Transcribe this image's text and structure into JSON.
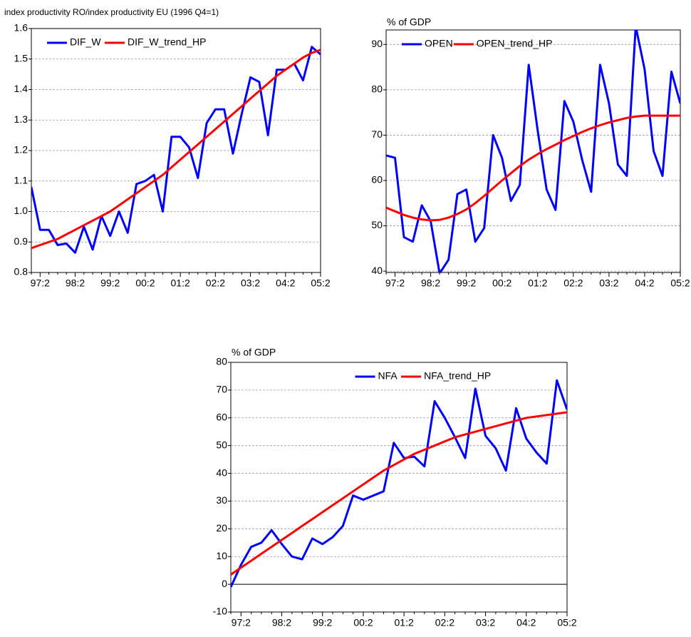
{
  "chart_data": [
    {
      "type": "line",
      "title": "index productivity RO/index productivity EU (1996 Q4=1)",
      "categories": [
        null,
        "97:2",
        null,
        null,
        null,
        "98:2",
        null,
        null,
        null,
        "99:2",
        null,
        null,
        null,
        "00:2",
        null,
        null,
        null,
        "01:2",
        null,
        null,
        null,
        "02:2",
        null,
        null,
        null,
        "03:2",
        null,
        null,
        null,
        "04:2",
        null,
        null,
        null,
        "05:2"
      ],
      "series": [
        {
          "name": "DIF_W",
          "color": "#0000ff",
          "values": [
            1.08,
            0.94,
            0.94,
            0.89,
            0.895,
            0.865,
            0.95,
            0.875,
            0.985,
            0.92,
            1.0,
            0.93,
            1.09,
            1.1,
            1.12,
            1.0,
            1.245,
            1.245,
            1.21,
            1.11,
            1.29,
            1.335,
            1.335,
            1.19,
            1.32,
            1.44,
            1.425,
            1.25,
            1.465,
            1.465,
            1.485,
            1.43,
            1.54,
            1.515
          ]
        },
        {
          "name": "DIF_W_trend_HP",
          "color": "#ff0000",
          "values": [
            0.88,
            0.89,
            0.9,
            0.91,
            0.925,
            0.94,
            0.955,
            0.97,
            0.985,
            1.0,
            1.02,
            1.04,
            1.06,
            1.08,
            1.1,
            1.12,
            1.145,
            1.17,
            1.195,
            1.22,
            1.245,
            1.27,
            1.295,
            1.32,
            1.345,
            1.37,
            1.395,
            1.42,
            1.445,
            1.465,
            1.485,
            1.505,
            1.52,
            1.53
          ]
        }
      ],
      "ylim": [
        0.8,
        1.6
      ],
      "yticks": [
        0.8,
        0.9,
        {
          "value": 1,
          "label": "1.0"
        },
        1.1,
        1.2,
        1.3,
        1.4,
        1.5,
        1.6
      ],
      "grid": true,
      "legend": "upper left"
    },
    {
      "type": "line",
      "ylabel": "% of GDP",
      "categories": [
        null,
        "97:2",
        null,
        null,
        null,
        "98:2",
        null,
        null,
        null,
        "99:2",
        null,
        null,
        null,
        "00:2",
        null,
        null,
        null,
        "01:2",
        null,
        null,
        null,
        "02:2",
        null,
        null,
        null,
        "03:2",
        null,
        null,
        null,
        "04:2",
        null,
        null,
        null,
        "05:2"
      ],
      "series": [
        {
          "name": "OPEN",
          "color": "#0000ff",
          "values": [
            65.5,
            65,
            47.5,
            46.5,
            54.5,
            51,
            39.5,
            42.5,
            57,
            58,
            46.5,
            49.5,
            70,
            65,
            55.5,
            59,
            85.5,
            71,
            58,
            53.5,
            77.5,
            73,
            64.5,
            57.5,
            85.5,
            77,
            63.5,
            61,
            94,
            84.5,
            66.5,
            61,
            84,
            77
          ]
        },
        {
          "name": "OPEN_trend_HP",
          "color": "#ff0000",
          "values": [
            54,
            53.2,
            52.4,
            51.8,
            51.4,
            51.2,
            51.3,
            51.8,
            52.6,
            53.6,
            55,
            56.6,
            58.3,
            60,
            61.6,
            63.2,
            64.6,
            65.8,
            66.9,
            67.9,
            68.9,
            69.8,
            70.7,
            71.5,
            72.2,
            72.8,
            73.3,
            73.8,
            74.1,
            74.3,
            74.3,
            74.3,
            74.3,
            74.3
          ]
        }
      ],
      "ylim": [
        39.7,
        93.2
      ],
      "yticks": [
        40,
        50,
        60,
        70,
        80,
        90
      ],
      "grid": true,
      "legend": "upper left"
    },
    {
      "type": "line",
      "ylabel": "% of GDP",
      "categories": [
        null,
        "97:2",
        null,
        null,
        null,
        "98:2",
        null,
        null,
        null,
        "99:2",
        null,
        null,
        null,
        "00:2",
        null,
        null,
        null,
        "01:2",
        null,
        null,
        null,
        "02:2",
        null,
        null,
        null,
        "03:2",
        null,
        null,
        null,
        "04:2",
        null,
        null,
        null,
        "05:2"
      ],
      "series": [
        {
          "name": "NFA",
          "color": "#0000ff",
          "values": [
            -1,
            7,
            13.5,
            15,
            19.5,
            14.5,
            10,
            9,
            16.5,
            14.5,
            17,
            21,
            32,
            30.5,
            32,
            33.5,
            51,
            45.5,
            46,
            42.5,
            66,
            60,
            53,
            45.5,
            70.5,
            53.5,
            49,
            41,
            63.5,
            52.5,
            47.5,
            43.5,
            73.5,
            63
          ]
        },
        {
          "name": "NFA_trend_HP",
          "color": "#ff0000",
          "values": [
            3.5,
            6,
            8.5,
            11,
            13.5,
            16,
            18.5,
            21,
            23.5,
            26,
            28.5,
            31,
            33.5,
            36,
            38.5,
            41,
            43,
            45,
            47,
            48.5,
            50,
            51.5,
            53,
            54,
            55,
            56,
            57,
            58,
            59,
            60,
            60.5,
            61,
            61.5,
            62
          ]
        }
      ],
      "ylim": [
        -10,
        80
      ],
      "yticks": [
        -10,
        0,
        10,
        20,
        30,
        40,
        50,
        60,
        70,
        80
      ],
      "grid": true,
      "zero_line": true,
      "legend": "upper center"
    }
  ]
}
